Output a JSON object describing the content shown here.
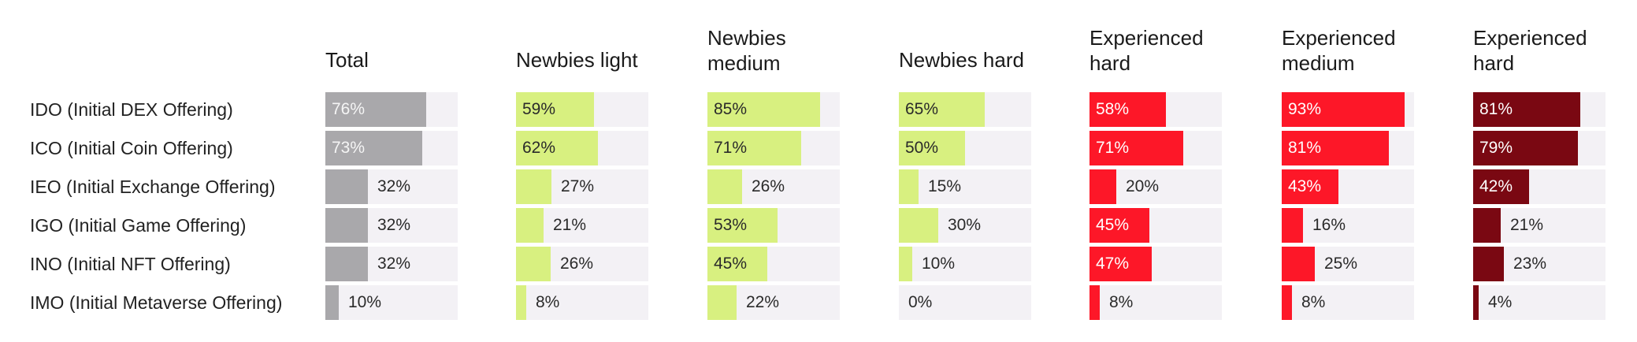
{
  "chart_data": {
    "type": "bar",
    "orientation": "horizontal",
    "title": "",
    "xlim": [
      0,
      100
    ],
    "value_suffix": "%",
    "categories": [
      "IDO (Initial DEX Offering)",
      "ICO (Initial Coin Offering)",
      "IEO (Initial Exchange Offering)",
      "IGO (Initial Game Offering)",
      "INO (Initial NFT Offering)",
      "IMO (Initial Metaverse Offering)"
    ],
    "series": [
      {
        "name": "Total",
        "color": "#a9a8ab",
        "values": [
          76,
          73,
          32,
          32,
          32,
          10
        ]
      },
      {
        "name": "Newbies light",
        "color": "#d8f080",
        "values": [
          59,
          62,
          27,
          21,
          26,
          8
        ]
      },
      {
        "name": "Newbies\nmedium",
        "color": "#d8f080",
        "values": [
          85,
          71,
          26,
          53,
          45,
          22
        ]
      },
      {
        "name": "Newbies hard",
        "color": "#d8f080",
        "values": [
          65,
          50,
          15,
          30,
          10,
          0
        ]
      },
      {
        "name": "Experienced\nhard",
        "color": "#fd1728",
        "values": [
          58,
          71,
          20,
          45,
          47,
          8
        ]
      },
      {
        "name": "Experienced\nmedium",
        "color": "#fd1728",
        "values": [
          93,
          81,
          43,
          16,
          25,
          8
        ]
      },
      {
        "name": "Experienced\nhard",
        "color": "#7a0812",
        "values": [
          81,
          79,
          42,
          21,
          23,
          4
        ]
      }
    ]
  }
}
